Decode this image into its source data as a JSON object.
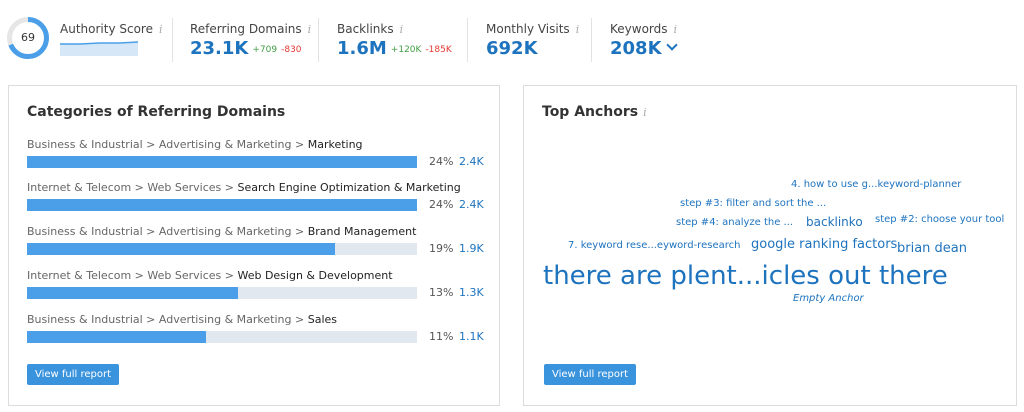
{
  "metrics": {
    "authority": {
      "label": "Authority Score",
      "value": "69",
      "score_fraction": 0.69
    },
    "referring_domains": {
      "label": "Referring Domains",
      "value": "23.1K",
      "up": "+709",
      "down": "-830"
    },
    "backlinks": {
      "label": "Backlinks",
      "value": "1.6M",
      "up": "+120K",
      "down": "-185K"
    },
    "monthly_visits": {
      "label": "Monthly Visits",
      "value": "692K"
    },
    "keywords": {
      "label": "Keywords",
      "value": "208K"
    },
    "info_glyph": "i"
  },
  "categories": {
    "title": "Categories of Referring Domains",
    "items": [
      {
        "path": "Business & Industrial > Advertising & Marketing > ",
        "leaf": "Marketing",
        "pct": "24%",
        "count": "2.4K",
        "fill": 1.0
      },
      {
        "path": "Internet & Telecom > Web Services > ",
        "leaf": "Search Engine Optimization & Marketing",
        "pct": "24%",
        "count": "2.4K",
        "fill": 1.0
      },
      {
        "path": "Business & Industrial > Advertising & Marketing > ",
        "leaf": "Brand Management",
        "pct": "19%",
        "count": "1.9K",
        "fill": 0.79
      },
      {
        "path": "Internet & Telecom > Web Services > ",
        "leaf": "Web Design & Development",
        "pct": "13%",
        "count": "1.3K",
        "fill": 0.54
      },
      {
        "path": "Business & Industrial > Advertising & Marketing > ",
        "leaf": "Sales",
        "pct": "11%",
        "count": "1.1K",
        "fill": 0.46
      }
    ],
    "button": "View full report"
  },
  "anchors": {
    "title": "Top Anchors",
    "items": [
      "4. how to use g...keyword-planner",
      "step #3: filter and sort the ...",
      "step #4: analyze the ...",
      "backlinko",
      "step #2: choose your tool",
      "7. keyword rese...eyword-research",
      "google ranking factors",
      "brian dean",
      "there are plent...icles out there",
      "Empty Anchor"
    ],
    "button": "View full report"
  },
  "colors": {
    "accent": "#1e73be",
    "bar": "#4a9fe8",
    "track": "#e1e8f0",
    "up": "#43a047",
    "down": "#e53935"
  }
}
